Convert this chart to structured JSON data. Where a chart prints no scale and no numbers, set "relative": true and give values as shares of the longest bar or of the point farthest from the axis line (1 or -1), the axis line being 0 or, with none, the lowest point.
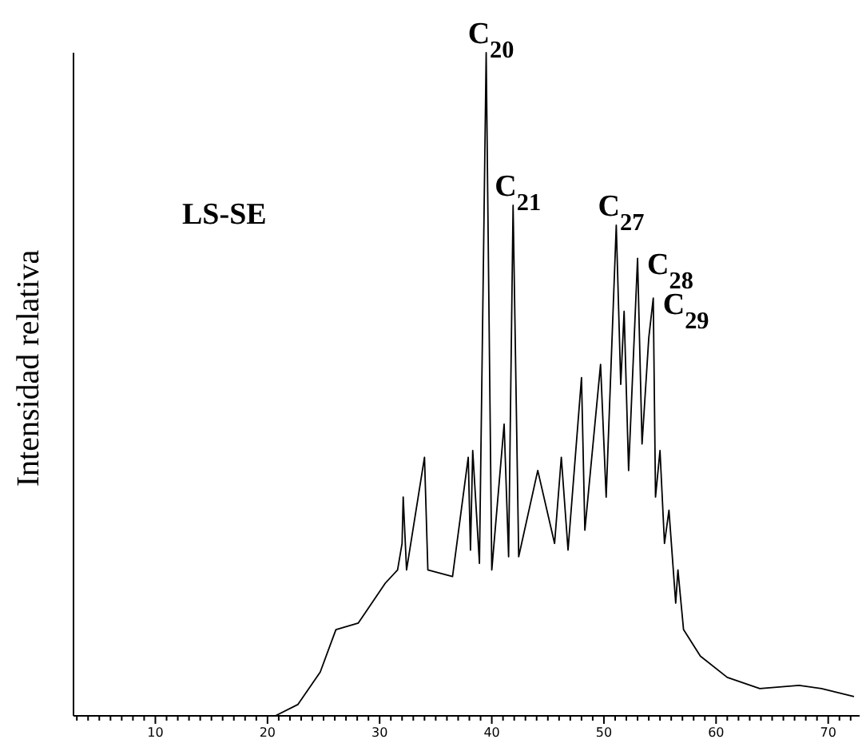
{
  "chart_data": {
    "type": "line",
    "relative": true,
    "ylabel": "Intensidad relativa",
    "xlim": [
      2.7,
      72.8
    ],
    "xticks": [
      {
        "value": 3,
        "label": null
      },
      {
        "value": 4,
        "label": null
      },
      {
        "value": 5,
        "label": null
      },
      {
        "value": 6,
        "label": null
      },
      {
        "value": 7,
        "label": null
      },
      {
        "value": 8,
        "label": null
      },
      {
        "value": 9,
        "label": null
      },
      10,
      {
        "value": 11,
        "label": null
      },
      {
        "value": 12,
        "label": null
      },
      {
        "value": 13,
        "label": null
      },
      {
        "value": 14,
        "label": null
      },
      {
        "value": 15,
        "label": null
      },
      {
        "value": 16,
        "label": null
      },
      {
        "value": 17,
        "label": null
      },
      {
        "value": 18,
        "label": null
      },
      {
        "value": 19,
        "label": null
      },
      20,
      {
        "value": 21,
        "label": null
      },
      {
        "value": 22,
        "label": null
      },
      {
        "value": 23,
        "label": null
      },
      {
        "value": 24,
        "label": null
      },
      {
        "value": 25,
        "label": null
      },
      {
        "value": 26,
        "label": null
      },
      {
        "value": 27,
        "label": null
      },
      {
        "value": 28,
        "label": null
      },
      {
        "value": 29,
        "label": null
      },
      30,
      {
        "value": 31,
        "label": null
      },
      {
        "value": 32,
        "label": null
      },
      {
        "value": 33,
        "label": null
      },
      {
        "value": 34,
        "label": null
      },
      {
        "value": 35,
        "label": null
      },
      {
        "value": 36,
        "label": null
      },
      {
        "value": 37,
        "label": null
      },
      {
        "value": 38,
        "label": null
      },
      {
        "value": 39,
        "label": null
      },
      40,
      {
        "value": 41,
        "label": null
      },
      {
        "value": 42,
        "label": null
      },
      {
        "value": 43,
        "label": null
      },
      {
        "value": 44,
        "label": null
      },
      {
        "value": 45,
        "label": null
      },
      {
        "value": 46,
        "label": null
      },
      {
        "value": 47,
        "label": null
      },
      {
        "value": 48,
        "label": null
      },
      {
        "value": 49,
        "label": null
      },
      50,
      {
        "value": 51,
        "label": null
      },
      {
        "value": 52,
        "label": null
      },
      {
        "value": 53,
        "label": null
      },
      {
        "value": 54,
        "label": null
      },
      {
        "value": 55,
        "label": null
      },
      {
        "value": 56,
        "label": null
      },
      {
        "value": 57,
        "label": null
      },
      {
        "value": 58,
        "label": null
      },
      {
        "value": 59,
        "label": null
      },
      60,
      {
        "value": 61,
        "label": null
      },
      {
        "value": 62,
        "label": null
      },
      {
        "value": 63,
        "label": null
      },
      {
        "value": 64,
        "label": null
      },
      {
        "value": 65,
        "label": null
      },
      {
        "value": 66,
        "label": null
      },
      {
        "value": 67,
        "label": null
      },
      {
        "value": 68,
        "label": null
      },
      {
        "value": 69,
        "label": null
      },
      70,
      {
        "value": 71,
        "label": null
      },
      {
        "value": 72,
        "label": null
      }
    ],
    "series": [
      {
        "color": "#000000",
        "x": [
          3,
          20.7,
          22.7,
          24.7,
          26.1,
          28.1,
          30.5,
          31.6,
          32.0,
          32.1,
          32.4,
          34.0,
          34.3,
          36.5,
          37.9,
          38.1,
          38.3,
          38.9,
          39.5,
          40.0,
          41.1,
          41.5,
          41.9,
          42.4,
          44.1,
          45.6,
          46.2,
          46.8,
          48.0,
          48.3,
          49.7,
          50.2,
          51.1,
          51.5,
          51.8,
          52.2,
          53.0,
          53.4,
          54.0,
          54.4,
          54.6,
          55.0,
          55.4,
          55.8,
          56.4,
          56.6,
          57.1,
          58.6,
          61.0,
          63.9,
          67.4,
          69.4,
          72.3
        ],
        "values": [
          0,
          0,
          0.017,
          0.066,
          0.13,
          0.14,
          0.2,
          0.22,
          0.26,
          0.33,
          0.22,
          0.39,
          0.22,
          0.21,
          0.39,
          0.25,
          0.4,
          0.23,
          1.0,
          0.22,
          0.44,
          0.24,
          0.77,
          0.24,
          0.37,
          0.26,
          0.39,
          0.25,
          0.51,
          0.28,
          0.53,
          0.33,
          0.74,
          0.5,
          0.61,
          0.37,
          0.69,
          0.41,
          0.57,
          0.63,
          0.33,
          0.4,
          0.26,
          0.31,
          0.17,
          0.22,
          0.13,
          0.09,
          0.058,
          0.041,
          0.046,
          0.041,
          0.029
        ]
      }
    ],
    "annotations": [
      "LS-SE",
      {
        "text": "C$_{20}$",
        "x": 39.5,
        "y": 1.0
      },
      {
        "text": "C$_{21}$",
        "x": 41.9,
        "y": 0.77
      },
      {
        "text": "C$_{27}$",
        "x": 51.1,
        "y": 0.74
      },
      {
        "text": "C$_{28}$",
        "x": 53.0,
        "y": 0.69
      },
      {
        "text": "C$_{29}$",
        "x": 54.4,
        "y": 0.63
      }
    ]
  }
}
